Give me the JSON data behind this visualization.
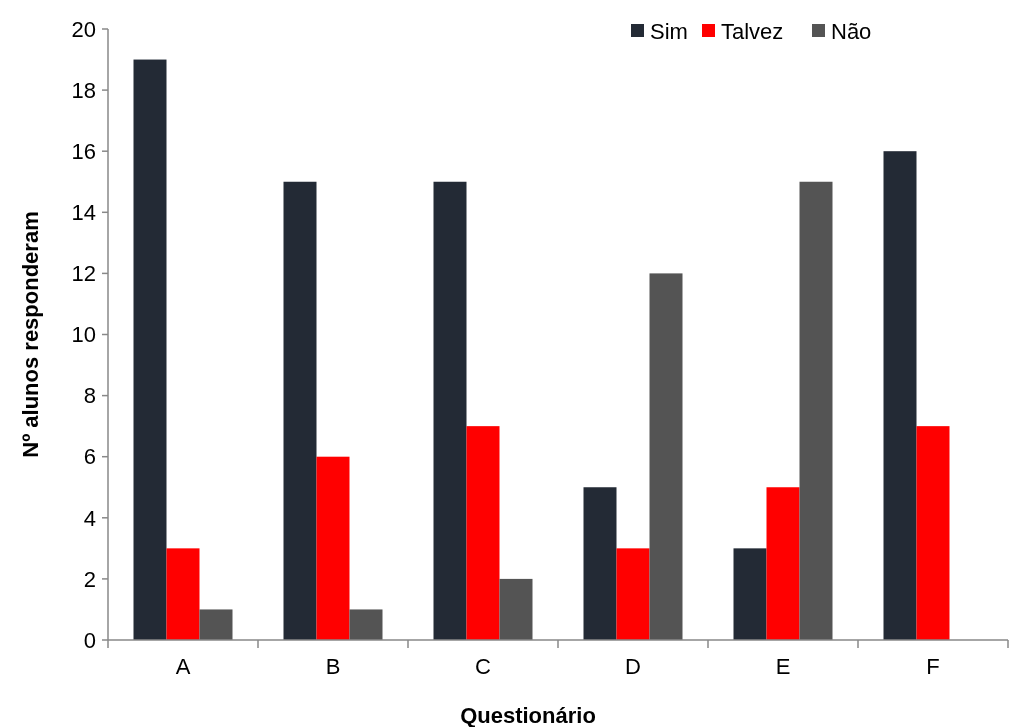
{
  "chart_data": {
    "type": "bar",
    "xlabel": "Questionário",
    "ylabel": "Nº alunos responderam",
    "categories": [
      "A",
      "B",
      "C",
      "D",
      "E",
      "F"
    ],
    "series": [
      {
        "name": "Sim",
        "color": "#232a35",
        "values": [
          19,
          15,
          15,
          5,
          3,
          16
        ]
      },
      {
        "name": "Talvez",
        "color": "#ff0000",
        "values": [
          3,
          6,
          7,
          3,
          5,
          7
        ]
      },
      {
        "name": "Não",
        "color": "#545454",
        "values": [
          1,
          1,
          2,
          12,
          15,
          0
        ]
      }
    ],
    "ylim": [
      0,
      20
    ],
    "yticks": [
      0,
      2,
      4,
      6,
      8,
      10,
      12,
      14,
      16,
      18,
      20
    ],
    "grid": false,
    "legend": "top right"
  }
}
